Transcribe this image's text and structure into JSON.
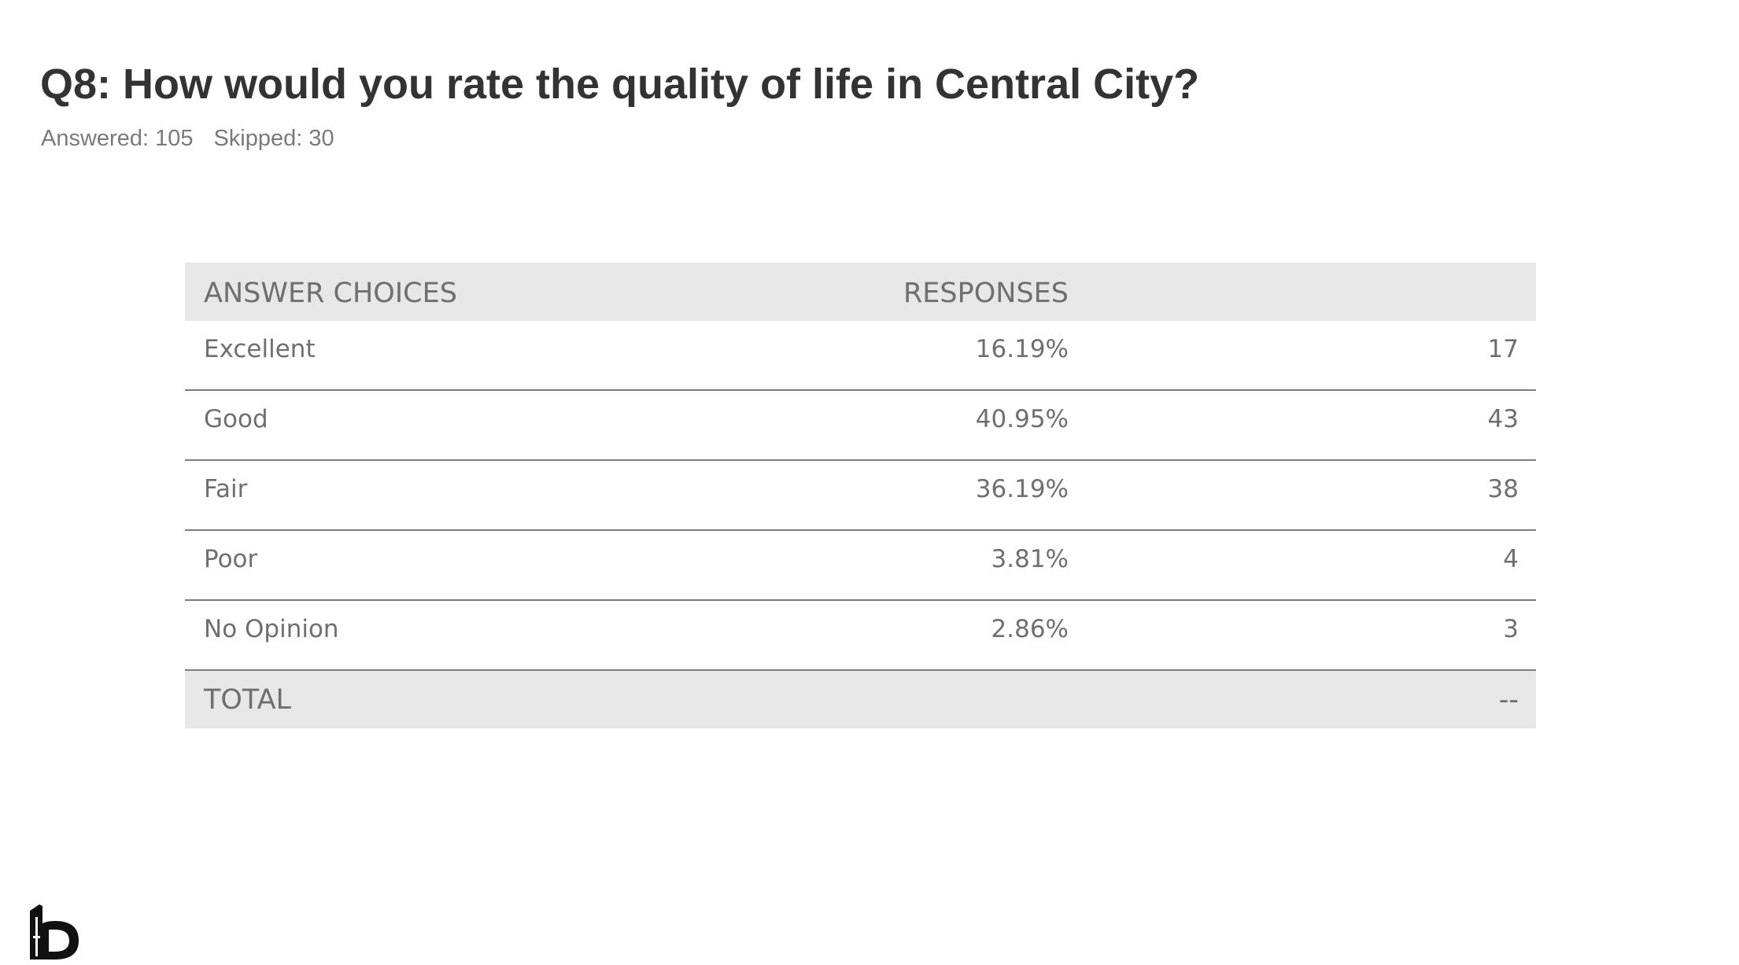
{
  "header": {
    "title": "Q8: How would you rate the quality of life in Central City?",
    "answered": "Answered: 105",
    "skipped": "Skipped: 30"
  },
  "chart_data": {
    "type": "table",
    "columns": [
      "ANSWER CHOICES",
      "RESPONSES",
      ""
    ],
    "rows": [
      {
        "label": "Excellent",
        "percent": "16.19%",
        "count": "17"
      },
      {
        "label": "Good",
        "percent": "40.95%",
        "count": "43"
      },
      {
        "label": "Fair",
        "percent": "36.19%",
        "count": "38"
      },
      {
        "label": "Poor",
        "percent": "3.81%",
        "count": "4"
      },
      {
        "label": "No Opinion",
        "percent": "2.86%",
        "count": "3"
      }
    ],
    "total": {
      "label": "TOTAL",
      "percent": "",
      "count": "--"
    }
  },
  "colors": {
    "title": "#333333",
    "subtitle": "#7a7a7a",
    "table_text": "#6f6f6f",
    "header_background": "#e7e7e7",
    "row_divider": "#7d7d7d"
  },
  "logo": {
    "icon": "logo-icon"
  }
}
